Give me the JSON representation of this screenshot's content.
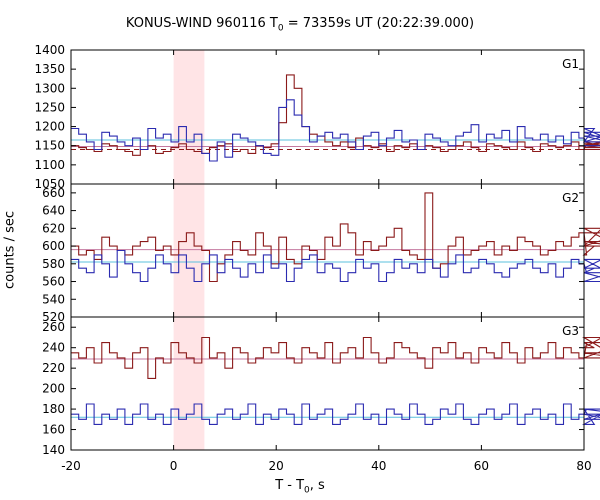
{
  "figure": {
    "title_main": "KONUS-WIND 960116 T",
    "title_sub": "0",
    "title_rest": " = 73359s UT (20:22:39.000)",
    "xlabel_main": "T - T",
    "xlabel_sub": "0",
    "xlabel_rest": ", s",
    "ylabel": "counts / sec"
  },
  "chart_data": [
    {
      "type": "line",
      "panel": "G1",
      "label": "G1",
      "xlim": [
        -20,
        80
      ],
      "ylim": [
        1050,
        1400
      ],
      "yticks": [
        1050,
        1100,
        1150,
        1200,
        1250,
        1300,
        1350,
        1400
      ],
      "highlight_interval": [
        0,
        6
      ],
      "bin_width": 1.5,
      "x_start": -20,
      "series": [
        {
          "color": "#8b1a1a",
          "values": [
            1150,
            1145,
            1140,
            1135,
            1155,
            1150,
            1140,
            1135,
            1125,
            1140,
            1150,
            1130,
            1135,
            1145,
            1155,
            1140,
            1135,
            1130,
            1145,
            1150,
            1155,
            1135,
            1140,
            1130,
            1150,
            1145,
            1155,
            1210,
            1335,
            1300,
            1200,
            1180,
            1175,
            1160,
            1150,
            1160,
            1145,
            1170,
            1150,
            1145,
            1155,
            1135,
            1150,
            1145,
            1155,
            1140,
            1150,
            1145,
            1135,
            1140,
            1150,
            1160,
            1145,
            1135,
            1155,
            1150,
            1145,
            1140,
            1160,
            1145,
            1135,
            1155,
            1150,
            1145,
            1150,
            1160,
            1140,
            1155,
            1150,
            1160,
            1145,
            1155,
            1140
          ]
        },
        {
          "color": "#2b2bb0",
          "values": [
            1195,
            1180,
            1160,
            1140,
            1185,
            1175,
            1160,
            1150,
            1170,
            1140,
            1195,
            1170,
            1180,
            1160,
            1200,
            1160,
            1180,
            1130,
            1110,
            1160,
            1120,
            1180,
            1170,
            1160,
            1150,
            1130,
            1125,
            1250,
            1270,
            1230,
            1200,
            1160,
            1175,
            1185,
            1170,
            1180,
            1160,
            1140,
            1175,
            1185,
            1150,
            1170,
            1190,
            1160,
            1165,
            1140,
            1180,
            1170,
            1160,
            1150,
            1175,
            1185,
            1205,
            1160,
            1180,
            1170,
            1190,
            1160,
            1200,
            1170,
            1165,
            1180,
            1160,
            1175,
            1155,
            1185,
            1170,
            1160,
            1195,
            1175,
            1160,
            1185,
            1150
          ]
        }
      ],
      "reference_lines": [
        {
          "color": "#5bc0de",
          "value": 1165,
          "style": "solid"
        },
        {
          "color": "#c47aa0",
          "value": 1148,
          "style": "solid"
        },
        {
          "color": "#8b1a1a",
          "value": 1140,
          "style": "dashed"
        }
      ]
    },
    {
      "type": "line",
      "panel": "G2",
      "label": "G2",
      "xlim": [
        -20,
        80
      ],
      "ylim": [
        520,
        670
      ],
      "yticks": [
        520,
        540,
        560,
        580,
        600,
        620,
        640,
        660
      ],
      "highlight_interval": [
        0,
        6
      ],
      "bin_width": 1.5,
      "x_start": -20,
      "series": [
        {
          "color": "#8b1a1a",
          "values": [
            600,
            590,
            595,
            585,
            610,
            600,
            595,
            590,
            600,
            605,
            610,
            595,
            600,
            590,
            605,
            615,
            600,
            595,
            560,
            580,
            590,
            605,
            595,
            590,
            615,
            600,
            580,
            610,
            585,
            580,
            600,
            595,
            585,
            610,
            600,
            625,
            615,
            590,
            605,
            595,
            600,
            610,
            620,
            595,
            590,
            585,
            660,
            575,
            580,
            600,
            610,
            590,
            595,
            600,
            605,
            590,
            600,
            595,
            610,
            605,
            600,
            590,
            595,
            605,
            600,
            610,
            615,
            590,
            600,
            620,
            605,
            600,
            615
          ]
        },
        {
          "color": "#2b2bb0",
          "values": [
            585,
            575,
            570,
            590,
            580,
            565,
            595,
            580,
            570,
            560,
            575,
            590,
            580,
            570,
            590,
            575,
            560,
            580,
            590,
            570,
            585,
            575,
            565,
            580,
            570,
            590,
            575,
            580,
            560,
            575,
            585,
            590,
            570,
            580,
            575,
            560,
            570,
            585,
            575,
            580,
            560,
            570,
            585,
            575,
            580,
            570,
            585,
            575,
            565,
            580,
            590,
            570,
            575,
            585,
            580,
            570,
            565,
            575,
            580,
            585,
            575,
            570,
            580,
            565,
            575,
            585,
            580,
            570,
            575,
            585,
            570,
            560,
            575
          ]
        }
      ],
      "reference_lines": [
        {
          "color": "#5bc0de",
          "value": 582,
          "style": "solid"
        },
        {
          "color": "#c47aa0",
          "value": 596,
          "style": "solid"
        }
      ]
    },
    {
      "type": "line",
      "panel": "G3",
      "label": "G3",
      "xlim": [
        -20,
        80
      ],
      "ylim": [
        140,
        270
      ],
      "yticks": [
        140,
        160,
        180,
        200,
        220,
        240,
        260
      ],
      "highlight_interval": [
        0,
        6
      ],
      "bin_width": 1.5,
      "x_start": -20,
      "series": [
        {
          "color": "#8b1a1a",
          "values": [
            235,
            230,
            240,
            225,
            245,
            235,
            230,
            220,
            235,
            240,
            210,
            230,
            225,
            245,
            235,
            230,
            225,
            250,
            230,
            235,
            220,
            240,
            235,
            225,
            230,
            240,
            235,
            245,
            230,
            225,
            240,
            235,
            230,
            245,
            225,
            235,
            240,
            230,
            250,
            235,
            225,
            230,
            245,
            240,
            235,
            230,
            220,
            240,
            235,
            245,
            230,
            235,
            225,
            240,
            235,
            230,
            245,
            235,
            225,
            240,
            230,
            235,
            245,
            230,
            240,
            235,
            230,
            245,
            240,
            250,
            235,
            230,
            245
          ]
        },
        {
          "color": "#2b2bb0",
          "values": [
            175,
            170,
            185,
            165,
            175,
            170,
            180,
            165,
            175,
            185,
            170,
            175,
            165,
            180,
            170,
            175,
            185,
            170,
            165,
            175,
            180,
            170,
            175,
            185,
            165,
            175,
            170,
            180,
            175,
            165,
            185,
            170,
            175,
            180,
            165,
            170,
            175,
            185,
            170,
            175,
            165,
            180,
            175,
            170,
            185,
            175,
            165,
            170,
            180,
            175,
            185,
            170,
            165,
            175,
            180,
            170,
            175,
            185,
            165,
            175,
            180,
            170,
            175,
            165,
            185,
            170,
            175,
            180,
            165,
            175,
            170,
            180,
            175
          ]
        }
      ],
      "reference_lines": [
        {
          "color": "#5bc0de",
          "value": 172,
          "style": "solid"
        },
        {
          "color": "#c47aa0",
          "value": 229,
          "style": "solid"
        }
      ]
    }
  ],
  "x_axis": {
    "ticks": [
      -20,
      0,
      20,
      40,
      60,
      80
    ]
  }
}
